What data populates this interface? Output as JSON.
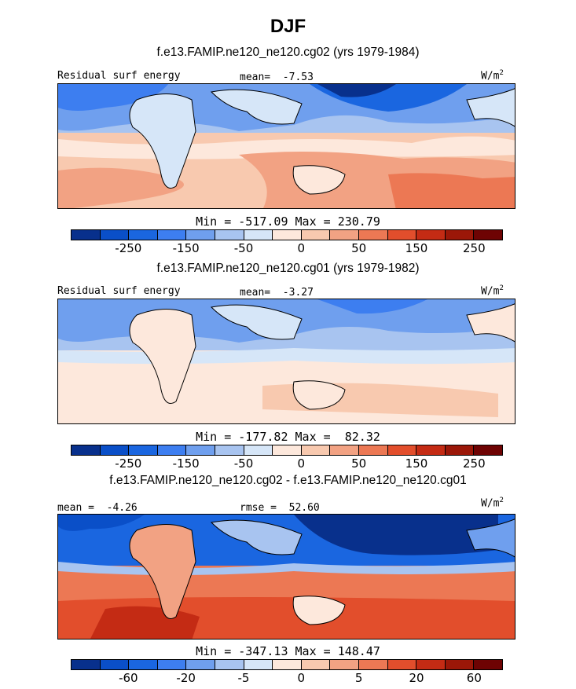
{
  "title": "DJF",
  "colors": {
    "palette": [
      "#08308c",
      "#0a4fc8",
      "#1a66e0",
      "#3d7ef0",
      "#6f9fee",
      "#a8c4f0",
      "#d6e6f8",
      "#fde8dc",
      "#f8c9af",
      "#f2a283",
      "#ec7854",
      "#e24e2c",
      "#c42b14",
      "#9b1708",
      "#6e0303"
    ]
  },
  "panels": [
    {
      "subtitle": "f.e13.FAMIP.ne120_ne120.cg02 (yrs 1979-1984)",
      "left_label": "Residual surf energy",
      "center_label": "mean=  -7.53",
      "units": "W/m",
      "units_sup": "2",
      "stats": "Min = -517.09 Max = 230.79",
      "ticks": [
        "-250",
        "-150",
        "-50",
        "0",
        "50",
        "150",
        "250"
      ]
    },
    {
      "subtitle": "f.e13.FAMIP.ne120_ne120.cg01 (yrs 1979-1982)",
      "left_label": "Residual surf energy",
      "center_label": "mean=  -3.27",
      "units": "W/m",
      "units_sup": "2",
      "stats": "Min = -177.82 Max =  82.32",
      "ticks": [
        "-250",
        "-150",
        "-50",
        "0",
        "50",
        "150",
        "250"
      ]
    },
    {
      "subtitle": "f.e13.FAMIP.ne120_ne120.cg02 - f.e13.FAMIP.ne120_ne120.cg01",
      "left_label": "mean =  -4.26",
      "center_label": "rmse =  52.60",
      "units": "W/m",
      "units_sup": "2",
      "stats": "Min = -347.13 Max = 148.47",
      "ticks": [
        "-60",
        "-20",
        "-5",
        "0",
        "5",
        "20",
        "60"
      ]
    }
  ]
}
